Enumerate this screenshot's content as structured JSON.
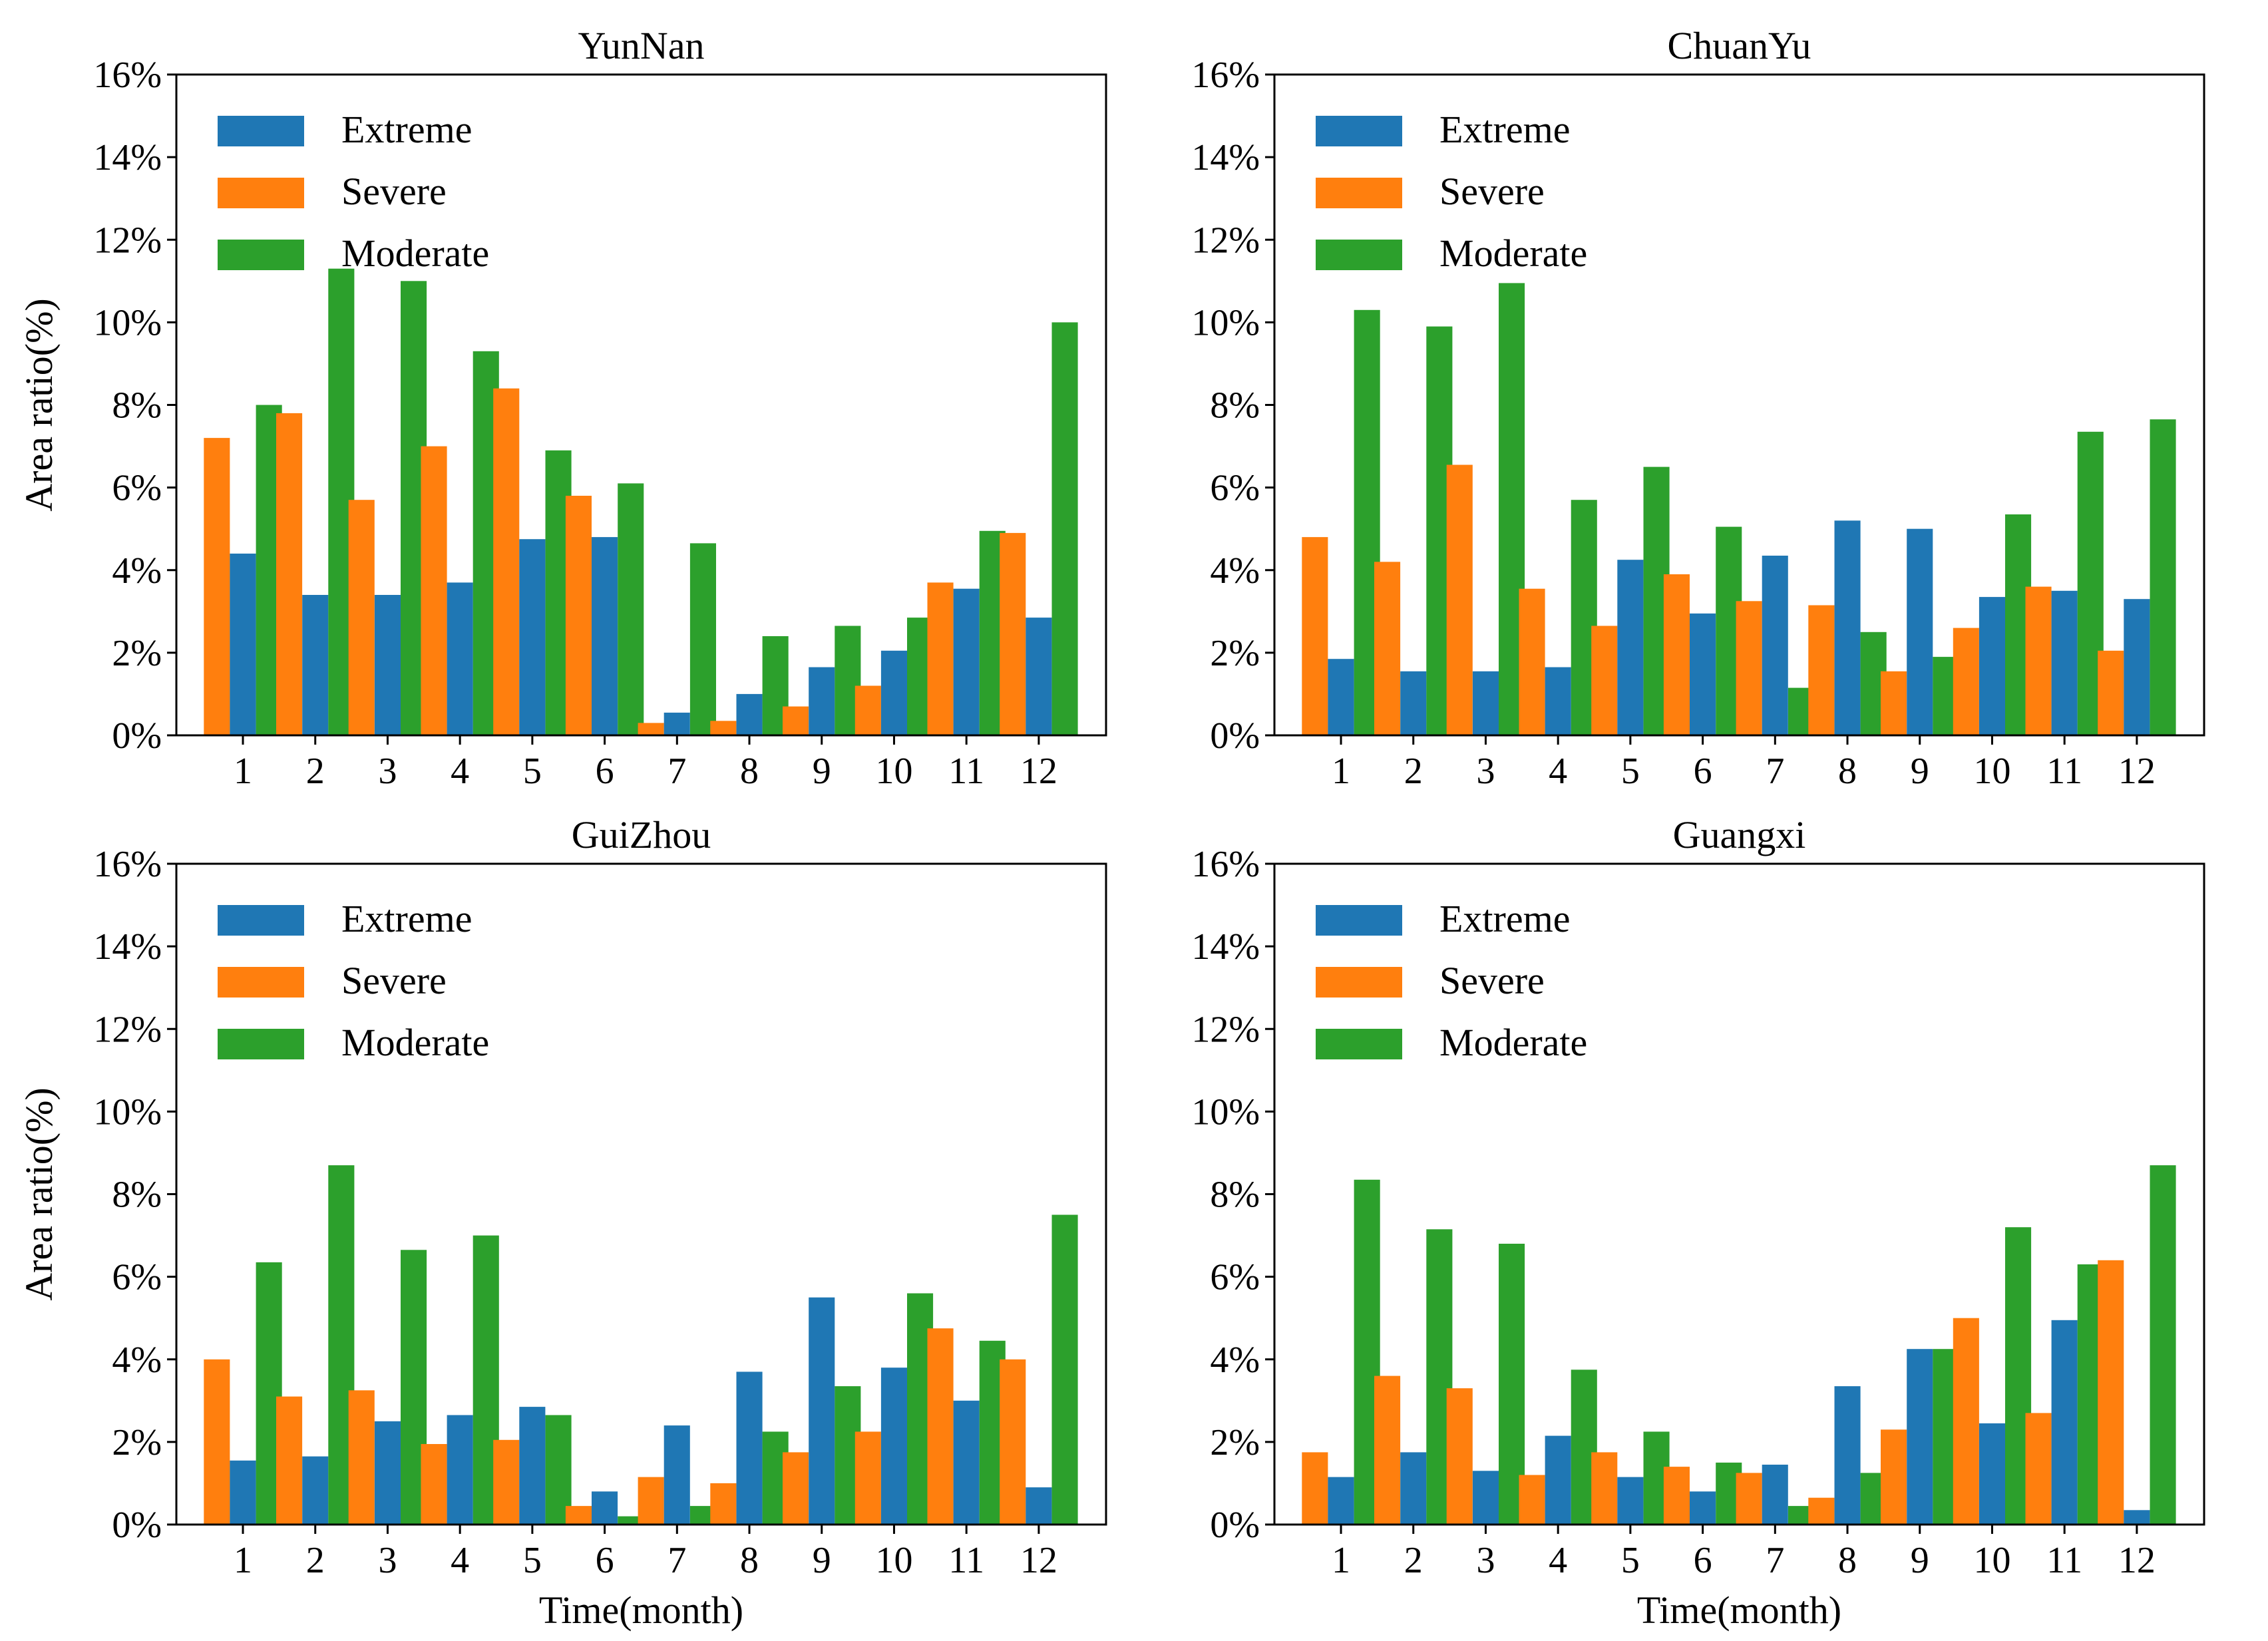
{
  "chart_data": [
    {
      "type": "bar",
      "title": "YunNan",
      "xlabel": "",
      "ylabel": "Area ratio(%)",
      "ylim": [
        0,
        16
      ],
      "yticks": [
        "0%",
        "2%",
        "4%",
        "6%",
        "8%",
        "10%",
        "12%",
        "14%",
        "16%"
      ],
      "categories": [
        "1",
        "2",
        "3",
        "4",
        "5",
        "6",
        "7",
        "8",
        "9",
        "10",
        "11",
        "12"
      ],
      "legend": "top-left",
      "series": [
        {
          "name": "Severe",
          "color": "#ff7f0e",
          "values": [
            7.2,
            7.8,
            5.7,
            7.0,
            8.4,
            5.8,
            0.3,
            0.35,
            0.7,
            1.2,
            3.7,
            4.9
          ]
        },
        {
          "name": "Extreme",
          "color": "#1f77b4",
          "values": [
            4.4,
            3.4,
            3.4,
            3.7,
            4.75,
            4.8,
            0.55,
            1.0,
            1.65,
            2.05,
            3.55,
            2.85
          ]
        },
        {
          "name": "Moderate",
          "color": "#2ca02c",
          "values": [
            8.0,
            11.3,
            11.0,
            9.3,
            6.9,
            6.1,
            4.65,
            2.4,
            2.65,
            2.85,
            4.95,
            10.0
          ]
        }
      ]
    },
    {
      "type": "bar",
      "title": "ChuanYu",
      "xlabel": "",
      "ylabel": "",
      "ylim": [
        0,
        16
      ],
      "yticks": [
        "0%",
        "2%",
        "4%",
        "6%",
        "8%",
        "10%",
        "12%",
        "14%",
        "16%"
      ],
      "categories": [
        "1",
        "2",
        "3",
        "4",
        "5",
        "6",
        "7",
        "8",
        "9",
        "10",
        "11",
        "12"
      ],
      "legend": "top-left",
      "series": [
        {
          "name": "Severe",
          "color": "#ff7f0e",
          "values": [
            4.8,
            4.2,
            6.55,
            3.55,
            2.65,
            3.9,
            3.25,
            3.15,
            1.55,
            2.6,
            3.6,
            2.05
          ]
        },
        {
          "name": "Extreme",
          "color": "#1f77b4",
          "values": [
            1.85,
            1.55,
            1.55,
            1.65,
            4.25,
            2.95,
            4.35,
            5.2,
            5.0,
            3.35,
            3.5,
            3.3
          ]
        },
        {
          "name": "Moderate",
          "color": "#2ca02c",
          "values": [
            10.3,
            9.9,
            10.95,
            5.7,
            6.5,
            5.05,
            1.15,
            2.5,
            1.9,
            5.35,
            7.35,
            7.65
          ]
        }
      ]
    },
    {
      "type": "bar",
      "title": "GuiZhou",
      "xlabel": "Time(month)",
      "ylabel": "Area ratio(%)",
      "ylim": [
        0,
        16
      ],
      "yticks": [
        "0%",
        "2%",
        "4%",
        "6%",
        "8%",
        "10%",
        "12%",
        "14%",
        "16%"
      ],
      "categories": [
        "1",
        "2",
        "3",
        "4",
        "5",
        "6",
        "7",
        "8",
        "9",
        "10",
        "11",
        "12"
      ],
      "legend": "top-left",
      "series": [
        {
          "name": "Severe",
          "color": "#ff7f0e",
          "values": [
            4.0,
            3.1,
            3.25,
            1.95,
            2.05,
            0.45,
            1.15,
            1.0,
            1.75,
            2.25,
            4.75,
            4.0
          ]
        },
        {
          "name": "Extreme",
          "color": "#1f77b4",
          "values": [
            1.55,
            1.65,
            2.5,
            2.65,
            2.85,
            0.8,
            2.4,
            3.7,
            5.5,
            3.8,
            3.0,
            0.9
          ]
        },
        {
          "name": "Moderate",
          "color": "#2ca02c",
          "values": [
            6.35,
            8.7,
            6.65,
            7.0,
            2.65,
            0.2,
            0.45,
            2.25,
            3.35,
            5.6,
            4.45,
            7.5
          ]
        }
      ]
    },
    {
      "type": "bar",
      "title": "Guangxi",
      "xlabel": "Time(month)",
      "ylabel": "",
      "ylim": [
        0,
        16
      ],
      "yticks": [
        "0%",
        "2%",
        "4%",
        "6%",
        "8%",
        "10%",
        "12%",
        "14%",
        "16%"
      ],
      "categories": [
        "1",
        "2",
        "3",
        "4",
        "5",
        "6",
        "7",
        "8",
        "9",
        "10",
        "11",
        "12"
      ],
      "legend": "top-left",
      "series": [
        {
          "name": "Severe",
          "color": "#ff7f0e",
          "values": [
            1.75,
            3.6,
            3.3,
            1.2,
            1.75,
            1.4,
            1.25,
            0.65,
            2.3,
            5.0,
            2.7,
            6.4
          ]
        },
        {
          "name": "Extreme",
          "color": "#1f77b4",
          "values": [
            1.15,
            1.75,
            1.3,
            2.15,
            1.15,
            0.8,
            1.45,
            3.35,
            4.25,
            2.45,
            4.95,
            0.35
          ]
        },
        {
          "name": "Moderate",
          "color": "#2ca02c",
          "values": [
            8.35,
            7.15,
            6.8,
            3.75,
            2.25,
            1.5,
            0.45,
            1.25,
            4.25,
            7.2,
            6.3,
            8.7
          ]
        }
      ]
    }
  ],
  "legend_order": [
    "Extreme",
    "Severe",
    "Moderate"
  ]
}
